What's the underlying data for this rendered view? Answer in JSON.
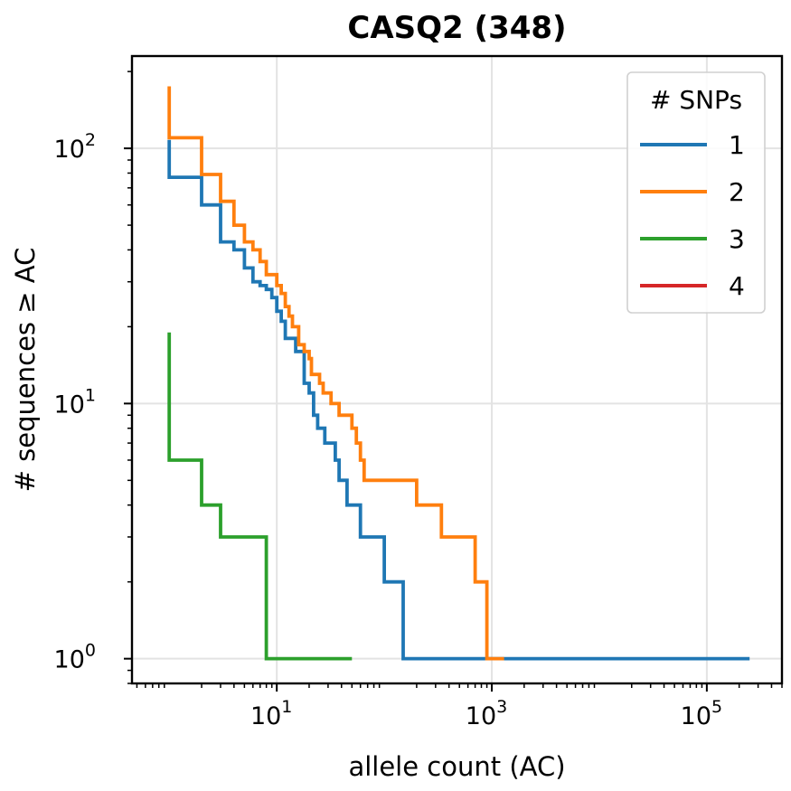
{
  "chart_data": {
    "type": "line",
    "title": "CASQ2 (348)",
    "xlabel": "allele count (AC)",
    "ylabel": "# sequences ≥ AC",
    "xscale": "log",
    "yscale": "log",
    "xlim": [
      0.45,
      500000
    ],
    "ylim": [
      0.8,
      230
    ],
    "xticks": [
      {
        "mant": "10",
        "exp": "1",
        "value": 10
      },
      {
        "mant": "10",
        "exp": "3",
        "value": 1000
      },
      {
        "mant": "10",
        "exp": "5",
        "value": 100000
      }
    ],
    "yticks": [
      {
        "mant": "10",
        "exp": "0",
        "value": 1
      },
      {
        "mant": "10",
        "exp": "1",
        "value": 10
      },
      {
        "mant": "10",
        "exp": "2",
        "value": 100
      }
    ],
    "grid": true,
    "legend": {
      "title": "# SNPs",
      "position": "top-right"
    },
    "series": [
      {
        "name": "1",
        "color": "#1f77b4",
        "points": [
          [
            1,
            108
          ],
          [
            1,
            77
          ],
          [
            2,
            77
          ],
          [
            2,
            60
          ],
          [
            3,
            60
          ],
          [
            3,
            43
          ],
          [
            4,
            43
          ],
          [
            4,
            40
          ],
          [
            5,
            40
          ],
          [
            5,
            34
          ],
          [
            6,
            34
          ],
          [
            6,
            30
          ],
          [
            7,
            30
          ],
          [
            7,
            29
          ],
          [
            8,
            29
          ],
          [
            8,
            28
          ],
          [
            9,
            28
          ],
          [
            9,
            26
          ],
          [
            10,
            26
          ],
          [
            10,
            23
          ],
          [
            11,
            23
          ],
          [
            11,
            21
          ],
          [
            12,
            21
          ],
          [
            12,
            18
          ],
          [
            15,
            18
          ],
          [
            15,
            16
          ],
          [
            18,
            16
          ],
          [
            18,
            12
          ],
          [
            20,
            12
          ],
          [
            20,
            11
          ],
          [
            22,
            11
          ],
          [
            22,
            9
          ],
          [
            24,
            9
          ],
          [
            24,
            8
          ],
          [
            28,
            8
          ],
          [
            28,
            7
          ],
          [
            35,
            7
          ],
          [
            35,
            6
          ],
          [
            38,
            6
          ],
          [
            38,
            5
          ],
          [
            45,
            5
          ],
          [
            45,
            4
          ],
          [
            60,
            4
          ],
          [
            60,
            3
          ],
          [
            100,
            3
          ],
          [
            100,
            2
          ],
          [
            150,
            2
          ],
          [
            150,
            1
          ],
          [
            250000,
            1
          ]
        ]
      },
      {
        "name": "2",
        "color": "#ff7f0e",
        "points": [
          [
            1,
            175
          ],
          [
            1,
            110
          ],
          [
            2,
            110
          ],
          [
            2,
            79
          ],
          [
            3,
            79
          ],
          [
            3,
            62
          ],
          [
            4,
            62
          ],
          [
            4,
            50
          ],
          [
            5,
            50
          ],
          [
            5,
            43
          ],
          [
            6,
            43
          ],
          [
            6,
            40
          ],
          [
            7,
            40
          ],
          [
            7,
            36
          ],
          [
            8,
            36
          ],
          [
            8,
            32
          ],
          [
            10,
            32
          ],
          [
            10,
            29
          ],
          [
            11,
            29
          ],
          [
            11,
            27
          ],
          [
            12,
            27
          ],
          [
            12,
            24
          ],
          [
            13,
            24
          ],
          [
            13,
            22
          ],
          [
            14,
            22
          ],
          [
            14,
            20
          ],
          [
            16,
            20
          ],
          [
            16,
            17
          ],
          [
            18,
            17
          ],
          [
            18,
            16
          ],
          [
            20,
            16
          ],
          [
            20,
            15
          ],
          [
            21,
            15
          ],
          [
            21,
            13
          ],
          [
            25,
            13
          ],
          [
            25,
            12
          ],
          [
            27,
            12
          ],
          [
            27,
            11
          ],
          [
            32,
            11
          ],
          [
            32,
            10
          ],
          [
            38,
            10
          ],
          [
            38,
            9
          ],
          [
            50,
            9
          ],
          [
            50,
            8
          ],
          [
            55,
            8
          ],
          [
            55,
            7
          ],
          [
            60,
            7
          ],
          [
            60,
            6
          ],
          [
            65,
            6
          ],
          [
            65,
            5
          ],
          [
            200,
            5
          ],
          [
            200,
            4
          ],
          [
            340,
            4
          ],
          [
            340,
            3
          ],
          [
            700,
            3
          ],
          [
            700,
            2
          ],
          [
            900,
            2
          ],
          [
            900,
            1
          ],
          [
            1300,
            1
          ]
        ]
      },
      {
        "name": "3",
        "color": "#2ca02c",
        "points": [
          [
            1,
            19
          ],
          [
            1,
            6
          ],
          [
            2,
            6
          ],
          [
            2,
            4
          ],
          [
            3,
            4
          ],
          [
            3,
            3
          ],
          [
            8,
            3
          ],
          [
            8,
            1
          ],
          [
            50,
            1
          ]
        ]
      },
      {
        "name": "4",
        "color": "#d62728",
        "points": []
      }
    ]
  }
}
